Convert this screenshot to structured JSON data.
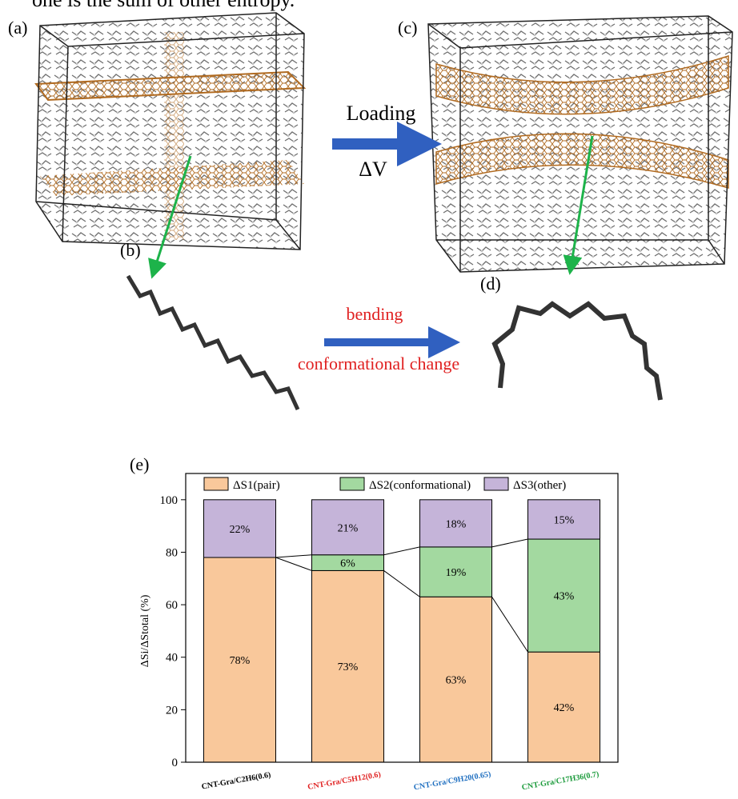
{
  "text_fragment": "one is the sum of other entropy.",
  "panels": {
    "a": "(a)",
    "b": "(b)",
    "c": "(c)",
    "d": "(d)"
  },
  "arrows": {
    "loading": "Loading",
    "delta_v": "ΔV",
    "bending": "bending",
    "conformational_change": "conformational change"
  },
  "chart_data": {
    "type": "bar",
    "stacked": true,
    "label": "(e)",
    "ylabel": "ΔSi/ΔStotal (%)",
    "categories": [
      "CNT-Gra/C2H6(0.6)",
      "CNT-Gra/C5H12(0.6)",
      "CNT-Gra/C9H20(0.65)",
      "CNT-Gra/C17H36(0.7)"
    ],
    "category_colors": [
      "#000000",
      "#e02020",
      "#1f6fc0",
      "#1a9a3a"
    ],
    "series": [
      {
        "name": "ΔS1(pair)",
        "color": "#f9c89b",
        "values": [
          78,
          73,
          63,
          42
        ],
        "value_labels": [
          "78%",
          "73%",
          "63%",
          "42%"
        ]
      },
      {
        "name": "ΔS2(conformational)",
        "color": "#a3d9a0",
        "values": [
          0,
          6,
          19,
          43
        ],
        "value_labels": [
          null,
          "6%",
          "19%",
          "43%"
        ]
      },
      {
        "name": "ΔS3(other)",
        "color": "#c5b4d9",
        "values": [
          22,
          21,
          18,
          15
        ],
        "value_labels": [
          "22%",
          "21%",
          "18%",
          "15%"
        ]
      }
    ],
    "ylim": [
      0,
      110
    ],
    "yticks": [
      0,
      20,
      40,
      60,
      80,
      100
    ]
  }
}
